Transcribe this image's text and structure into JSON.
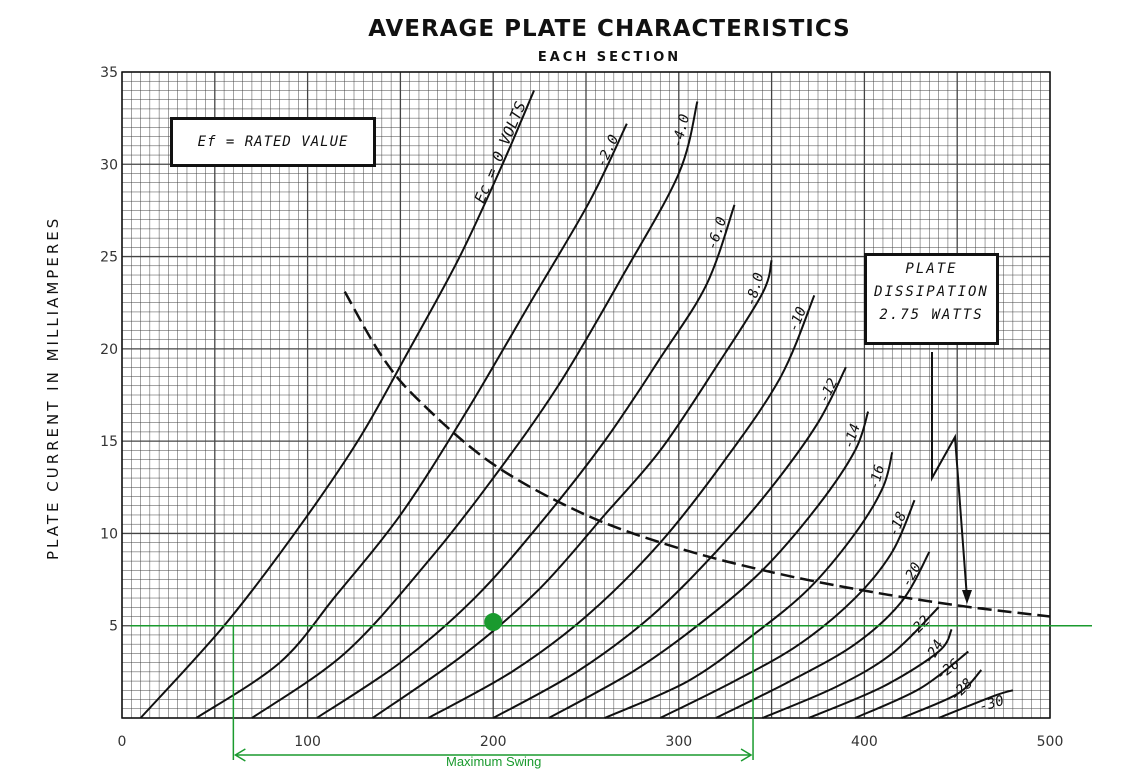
{
  "title": "AVERAGE PLATE CHARACTERISTICS",
  "subtitle": "EACH SECTION",
  "ylabel": "PLATE CURRENT IN MILLIAMPERES",
  "note_box": "Ef = RATED VALUE",
  "dissipation_box": [
    "PLATE",
    "DISSIPATION",
    "2.75 WATTS"
  ],
  "swing_label": "Maximum Swing",
  "colors": {
    "curve": "#111111",
    "grid": "#444444",
    "overlay": "#1a9a2e"
  },
  "chart_data": {
    "type": "line",
    "title": "AVERAGE PLATE CHARACTERISTICS",
    "subtitle": "EACH SECTION",
    "xlabel": "",
    "ylabel": "PLATE CURRENT IN MILLIAMPERES",
    "xlim": [
      0,
      500
    ],
    "ylim": [
      0,
      35
    ],
    "x_ticks": [
      0,
      100,
      200,
      300,
      400,
      500
    ],
    "y_ticks": [
      5,
      10,
      15,
      20,
      25,
      30,
      35
    ],
    "grid": true,
    "series": [
      {
        "name": "Ec = 0 VOLTS",
        "x0": 10,
        "points": [
          [
            10,
            0
          ],
          [
            55,
            5
          ],
          [
            93,
            10
          ],
          [
            127,
            15
          ],
          [
            155,
            20
          ],
          [
            182,
            25
          ],
          [
            205,
            30
          ],
          [
            222,
            34
          ]
        ]
      },
      {
        "name": "-2.0",
        "x0": 40,
        "points": [
          [
            40,
            0
          ],
          [
            85,
            3
          ],
          [
            115,
            6.6
          ],
          [
            150,
            11
          ],
          [
            185,
            16.5
          ],
          [
            220,
            22.5
          ],
          [
            252,
            28
          ],
          [
            272,
            32.2
          ]
        ]
      },
      {
        "name": "-4.0",
        "x0": 70,
        "points": [
          [
            70,
            0
          ],
          [
            120,
            3.5
          ],
          [
            165,
            8.5
          ],
          [
            200,
            13
          ],
          [
            235,
            18
          ],
          [
            270,
            24
          ],
          [
            300,
            29.5
          ],
          [
            310,
            33.4
          ]
        ]
      },
      {
        "name": "-6.0",
        "x0": 105,
        "points": [
          [
            105,
            0
          ],
          [
            150,
            3
          ],
          [
            190,
            6.5
          ],
          [
            225,
            10.5
          ],
          [
            260,
            15
          ],
          [
            290,
            19.5
          ],
          [
            315,
            23.5
          ],
          [
            330,
            27.8
          ]
        ]
      },
      {
        "name": "-8.0",
        "x0": 135,
        "points": [
          [
            135,
            0
          ],
          [
            185,
            3.5
          ],
          [
            225,
            7
          ],
          [
            260,
            11
          ],
          [
            290,
            14.5
          ],
          [
            320,
            19
          ],
          [
            345,
            23
          ],
          [
            350,
            24.8
          ]
        ]
      },
      {
        "name": "-10",
        "x0": 165,
        "points": [
          [
            165,
            0
          ],
          [
            210,
            2.5
          ],
          [
            250,
            5.5
          ],
          [
            290,
            9.5
          ],
          [
            325,
            14
          ],
          [
            355,
            18.5
          ],
          [
            373,
            22.9
          ]
        ]
      },
      {
        "name": "-12",
        "x0": 200,
        "points": [
          [
            200,
            0
          ],
          [
            245,
            2.5
          ],
          [
            285,
            5.5
          ],
          [
            320,
            9
          ],
          [
            350,
            12.5
          ],
          [
            375,
            16
          ],
          [
            390,
            19
          ]
        ]
      },
      {
        "name": "-14",
        "x0": 230,
        "points": [
          [
            230,
            0
          ],
          [
            275,
            2.5
          ],
          [
            310,
            5
          ],
          [
            345,
            8
          ],
          [
            375,
            11.5
          ],
          [
            395,
            14.5
          ],
          [
            402,
            16.6
          ]
        ]
      },
      {
        "name": "-16",
        "x0": 260,
        "points": [
          [
            260,
            0
          ],
          [
            305,
            2
          ],
          [
            340,
            4.5
          ],
          [
            370,
            7
          ],
          [
            395,
            10
          ],
          [
            410,
            12.5
          ],
          [
            415,
            14.4
          ]
        ]
      },
      {
        "name": "-18",
        "x0": 290,
        "points": [
          [
            290,
            0
          ],
          [
            330,
            2
          ],
          [
            365,
            4
          ],
          [
            395,
            6.5
          ],
          [
            415,
            9
          ],
          [
            427,
            11.8
          ]
        ]
      },
      {
        "name": "-20",
        "x0": 320,
        "points": [
          [
            320,
            0
          ],
          [
            360,
            2
          ],
          [
            395,
            4
          ],
          [
            420,
            6.3
          ],
          [
            435,
            9
          ]
        ]
      },
      {
        "name": "-22",
        "x0": 345,
        "points": [
          [
            345,
            0
          ],
          [
            385,
            1.7
          ],
          [
            415,
            3.5
          ],
          [
            440,
            6
          ]
        ]
      },
      {
        "name": "-24",
        "x0": 370,
        "points": [
          [
            370,
            0
          ],
          [
            410,
            1.7
          ],
          [
            440,
            3.6
          ],
          [
            447,
            4.8
          ]
        ]
      },
      {
        "name": "-26",
        "x0": 395,
        "points": [
          [
            395,
            0
          ],
          [
            430,
            1.6
          ],
          [
            456,
            3.6
          ]
        ]
      },
      {
        "name": "-28",
        "x0": 420,
        "points": [
          [
            420,
            0
          ],
          [
            450,
            1.3
          ],
          [
            463,
            2.6
          ]
        ]
      },
      {
        "name": "-30",
        "x0": 440,
        "points": [
          [
            440,
            0
          ],
          [
            470,
            1.2
          ],
          [
            480,
            1.5
          ]
        ]
      }
    ],
    "dissipation_curve": {
      "name": "PLATE DISSIPATION 2.75 WATTS",
      "points": [
        [
          120,
          23.1
        ],
        [
          140,
          19.6
        ],
        [
          160,
          17.2
        ],
        [
          200,
          13.75
        ],
        [
          250,
          11
        ],
        [
          300,
          9.2
        ],
        [
          350,
          7.9
        ],
        [
          400,
          6.9
        ],
        [
          450,
          6.1
        ],
        [
          500,
          5.5
        ]
      ]
    },
    "load_line_y": 5,
    "operating_point": {
      "x": 200,
      "y": 5.2
    },
    "swing_range": [
      60,
      340
    ]
  }
}
